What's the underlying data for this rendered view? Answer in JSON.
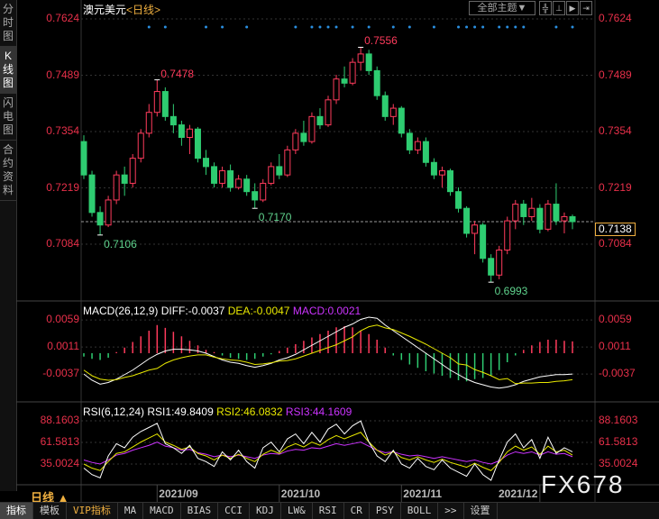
{
  "sidebar": {
    "tabs": [
      "分时图",
      "K线图",
      "闪电图",
      "合约资料"
    ],
    "active": 1
  },
  "header": {
    "symbol": "澳元美元",
    "period": "<日线>",
    "theme_label": "全部主题▼",
    "buttons": [
      "╬",
      "⊥",
      "▶",
      "⇥"
    ]
  },
  "price_axis": {
    "ticks": [
      "0.7624",
      "0.7489",
      "0.7354",
      "0.7219",
      "0.7084"
    ],
    "tick_values": [
      0.7624,
      0.7489,
      0.7354,
      0.7219,
      0.7084
    ],
    "current": "0.7138",
    "current_value": 0.7138
  },
  "annotations": [
    {
      "label": "0.7478",
      "index": 9,
      "value": 0.7478,
      "color": "#ff3b5c"
    },
    {
      "label": "0.7106",
      "index": 2,
      "value": 0.7106,
      "color": "#5fd38d"
    },
    {
      "label": "0.7170",
      "index": 21,
      "value": 0.717,
      "color": "#5fd38d"
    },
    {
      "label": "0.7556",
      "index": 34,
      "value": 0.7556,
      "color": "#ff3b5c"
    },
    {
      "label": "0.6993",
      "index": 50,
      "value": 0.6993,
      "color": "#5fd38d"
    }
  ],
  "colors": {
    "up": "#ff3b5c",
    "down": "#2ecc71",
    "axis": "#e8304a",
    "diff": "#ffffff",
    "dea": "#e8e800",
    "macd": "#cc33ff",
    "signal": "#2a8fe0"
  },
  "signal_marks": [
    8,
    10,
    15,
    17,
    20,
    26,
    28,
    29,
    30,
    31,
    33,
    35,
    38,
    40,
    43,
    46,
    47,
    48,
    49,
    51,
    52,
    53,
    54,
    58,
    60
  ],
  "candles": [
    [
      0.733,
      0.7345,
      0.724,
      0.725
    ],
    [
      0.725,
      0.726,
      0.715,
      0.716
    ],
    [
      0.716,
      0.7175,
      0.7106,
      0.713
    ],
    [
      0.713,
      0.72,
      0.7125,
      0.719
    ],
    [
      0.719,
      0.726,
      0.718,
      0.725
    ],
    [
      0.725,
      0.727,
      0.72,
      0.723
    ],
    [
      0.723,
      0.73,
      0.722,
      0.729
    ],
    [
      0.729,
      0.736,
      0.728,
      0.735
    ],
    [
      0.735,
      0.742,
      0.734,
      0.74
    ],
    [
      0.74,
      0.7478,
      0.739,
      0.745
    ],
    [
      0.745,
      0.746,
      0.738,
      0.739
    ],
    [
      0.739,
      0.742,
      0.735,
      0.737
    ],
    [
      0.737,
      0.738,
      0.732,
      0.734
    ],
    [
      0.734,
      0.737,
      0.73,
      0.736
    ],
    [
      0.736,
      0.7365,
      0.728,
      0.729
    ],
    [
      0.729,
      0.731,
      0.725,
      0.727
    ],
    [
      0.727,
      0.728,
      0.722,
      0.723
    ],
    [
      0.723,
      0.727,
      0.722,
      0.726
    ],
    [
      0.726,
      0.7275,
      0.721,
      0.722
    ],
    [
      0.722,
      0.725,
      0.7215,
      0.724
    ],
    [
      0.724,
      0.725,
      0.72,
      0.721
    ],
    [
      0.721,
      0.723,
      0.717,
      0.719
    ],
    [
      0.719,
      0.724,
      0.7185,
      0.723
    ],
    [
      0.723,
      0.728,
      0.7225,
      0.727
    ],
    [
      0.727,
      0.73,
      0.724,
      0.725
    ],
    [
      0.725,
      0.732,
      0.7245,
      0.731
    ],
    [
      0.731,
      0.736,
      0.73,
      0.735
    ],
    [
      0.735,
      0.738,
      0.732,
      0.733
    ],
    [
      0.733,
      0.74,
      0.7325,
      0.739
    ],
    [
      0.739,
      0.741,
      0.736,
      0.737
    ],
    [
      0.737,
      0.744,
      0.7365,
      0.743
    ],
    [
      0.743,
      0.749,
      0.742,
      0.748
    ],
    [
      0.748,
      0.751,
      0.746,
      0.747
    ],
    [
      0.747,
      0.753,
      0.7465,
      0.752
    ],
    [
      0.752,
      0.7556,
      0.75,
      0.754
    ],
    [
      0.754,
      0.755,
      0.749,
      0.75
    ],
    [
      0.75,
      0.751,
      0.743,
      0.744
    ],
    [
      0.744,
      0.745,
      0.738,
      0.739
    ],
    [
      0.739,
      0.742,
      0.737,
      0.741
    ],
    [
      0.741,
      0.7415,
      0.734,
      0.735
    ],
    [
      0.735,
      0.736,
      0.73,
      0.731
    ],
    [
      0.731,
      0.734,
      0.73,
      0.733
    ],
    [
      0.733,
      0.734,
      0.727,
      0.728
    ],
    [
      0.728,
      0.729,
      0.724,
      0.725
    ],
    [
      0.725,
      0.727,
      0.722,
      0.726
    ],
    [
      0.726,
      0.7265,
      0.72,
      0.721
    ],
    [
      0.721,
      0.722,
      0.716,
      0.717
    ],
    [
      0.717,
      0.7175,
      0.71,
      0.711
    ],
    [
      0.711,
      0.714,
      0.706,
      0.713
    ],
    [
      0.713,
      0.7135,
      0.704,
      0.705
    ],
    [
      0.705,
      0.706,
      0.6993,
      0.701
    ],
    [
      0.701,
      0.708,
      0.7,
      0.707
    ],
    [
      0.707,
      0.715,
      0.706,
      0.714
    ],
    [
      0.714,
      0.719,
      0.712,
      0.718
    ],
    [
      0.718,
      0.719,
      0.713,
      0.715
    ],
    [
      0.715,
      0.7195,
      0.714,
      0.717
    ],
    [
      0.717,
      0.718,
      0.711,
      0.712
    ],
    [
      0.712,
      0.719,
      0.7115,
      0.718
    ],
    [
      0.718,
      0.723,
      0.713,
      0.714
    ],
    [
      0.714,
      0.716,
      0.711,
      0.715
    ],
    [
      0.715,
      0.7155,
      0.712,
      0.7138
    ]
  ],
  "macd": {
    "label": "MACD(26,12,9)",
    "diff_label": "DIFF:-0.0037",
    "dea_label": "DEA:-0.0047",
    "macd_label": "MACD:0.0021",
    "ticks": [
      "0.0059",
      "0.0011",
      "-0.0037"
    ],
    "tick_values": [
      0.0059,
      0.0011,
      -0.0037
    ],
    "hist": [
      -0.0006,
      -0.001,
      -0.0012,
      -0.0008,
      0.0002,
      0.001,
      0.002,
      0.003,
      0.004,
      0.005,
      0.0045,
      0.0038,
      0.003,
      0.0022,
      0.0014,
      0.0006,
      0.0002,
      -0.0004,
      -0.0008,
      -0.001,
      -0.0012,
      -0.001,
      -0.0006,
      -0.0002,
      0.0004,
      0.001,
      0.0016,
      0.0022,
      0.0028,
      0.0034,
      0.004,
      0.0046,
      0.0048,
      0.0046,
      0.004,
      0.0034,
      0.0024,
      0.001,
      -0.0004,
      -0.0012,
      -0.002,
      -0.0026,
      -0.0032,
      -0.0036,
      -0.004,
      -0.0044,
      -0.0048,
      -0.005,
      -0.0046,
      -0.0044,
      -0.004,
      -0.003,
      -0.0016,
      -0.0004,
      0.0006,
      0.0014,
      0.002,
      0.0024,
      0.0024,
      0.0022,
      0.0021
    ],
    "diff": [
      -0.0037,
      -0.0048,
      -0.0055,
      -0.0052,
      -0.0046,
      -0.0038,
      -0.003,
      -0.002,
      -0.001,
      -0.0002,
      0.0004,
      0.0007,
      0.0007,
      0.0006,
      0.0004,
      0.0,
      -0.0006,
      -0.0012,
      -0.0016,
      -0.0018,
      -0.0022,
      -0.0025,
      -0.0022,
      -0.0018,
      -0.0012,
      -0.0008,
      -0.0002,
      0.0006,
      0.0014,
      0.0022,
      0.003,
      0.0038,
      0.0046,
      0.0052,
      0.006,
      0.0064,
      0.0062,
      0.005,
      0.004,
      0.003,
      0.002,
      0.001,
      0.0,
      -0.001,
      -0.002,
      -0.003,
      -0.0038,
      -0.0046,
      -0.0052,
      -0.0056,
      -0.006,
      -0.0062,
      -0.006,
      -0.0056,
      -0.005,
      -0.0046,
      -0.0042,
      -0.004,
      -0.0038,
      -0.0038,
      -0.0037
    ],
    "dea": [
      -0.003,
      -0.004,
      -0.0046,
      -0.0048,
      -0.0047,
      -0.0043,
      -0.004,
      -0.0035,
      -0.003,
      -0.0027,
      -0.0018,
      -0.0012,
      -0.0008,
      -0.0005,
      -0.0003,
      -0.0003,
      -0.0007,
      -0.001,
      -0.0012,
      -0.0013,
      -0.0016,
      -0.002,
      -0.0019,
      -0.0017,
      -0.0014,
      -0.0013,
      -0.001,
      -0.0005,
      0.0,
      0.0005,
      0.001,
      0.0015,
      0.0022,
      0.0029,
      0.004,
      0.0047,
      0.005,
      0.0045,
      0.0042,
      0.0036,
      0.003,
      0.0023,
      0.0016,
      0.0008,
      0.0,
      -0.0008,
      -0.0019,
      -0.0021,
      -0.0029,
      -0.0034,
      -0.004,
      -0.0047,
      -0.0045,
      -0.0054,
      -0.0053,
      -0.0053,
      -0.0052,
      -0.0052,
      -0.005,
      -0.0049,
      -0.0047
    ]
  },
  "rsi": {
    "label": "RSI(6,12,24)",
    "rsi1_label": "RSI1:49.8409",
    "rsi2_label": "RSI2:46.0832",
    "rsi3_label": "RSI3:44.1609",
    "ticks": [
      "88.1603",
      "61.5813",
      "35.0024"
    ],
    "tick_values": [
      88.1603,
      61.5813,
      35.0024
    ],
    "rsi1": [
      30,
      22,
      18,
      45,
      60,
      55,
      68,
      75,
      80,
      85,
      60,
      55,
      48,
      58,
      42,
      38,
      32,
      50,
      40,
      52,
      38,
      30,
      55,
      62,
      50,
      66,
      72,
      60,
      74,
      62,
      78,
      84,
      72,
      82,
      88,
      62,
      45,
      38,
      52,
      35,
      30,
      42,
      32,
      28,
      40,
      30,
      25,
      20,
      35,
      22,
      15,
      40,
      62,
      72,
      55,
      65,
      42,
      68,
      48,
      55,
      50
    ],
    "rsi2": [
      35,
      30,
      27,
      38,
      48,
      50,
      56,
      62,
      67,
      72,
      62,
      58,
      53,
      56,
      48,
      45,
      40,
      46,
      42,
      47,
      42,
      38,
      47,
      52,
      48,
      56,
      60,
      56,
      62,
      58,
      65,
      70,
      66,
      70,
      74,
      62,
      52,
      46,
      50,
      43,
      40,
      44,
      40,
      37,
      41,
      37,
      34,
      31,
      36,
      31,
      27,
      37,
      50,
      57,
      52,
      56,
      47,
      57,
      50,
      52,
      46
    ],
    "rsi3": [
      40,
      37,
      35,
      40,
      46,
      48,
      52,
      55,
      58,
      62,
      57,
      55,
      52,
      53,
      49,
      47,
      44,
      46,
      44,
      46,
      44,
      42,
      46,
      48,
      47,
      51,
      53,
      52,
      55,
      54,
      57,
      60,
      58,
      60,
      62,
      57,
      52,
      49,
      50,
      47,
      45,
      46,
      44,
      42,
      44,
      42,
      40,
      38,
      40,
      37,
      35,
      39,
      46,
      50,
      48,
      50,
      46,
      50,
      47,
      48,
      44
    ]
  },
  "dates": [
    {
      "label": "2021/09",
      "index": 9
    },
    {
      "label": "2021/10",
      "index": 24
    },
    {
      "label": "2021/11",
      "index": 39
    },
    {
      "label": "2021/12",
      "index": 56
    }
  ],
  "period_selector": "日线 ▲",
  "watermark": "FX678",
  "toolbar": [
    "指标",
    "模板",
    "VIP指标",
    "MA",
    "MACD",
    "BIAS",
    "CCI",
    "KDJ",
    "LW&",
    "RSI",
    "CR",
    "PSY",
    "BOLL",
    ">>",
    "设置"
  ]
}
